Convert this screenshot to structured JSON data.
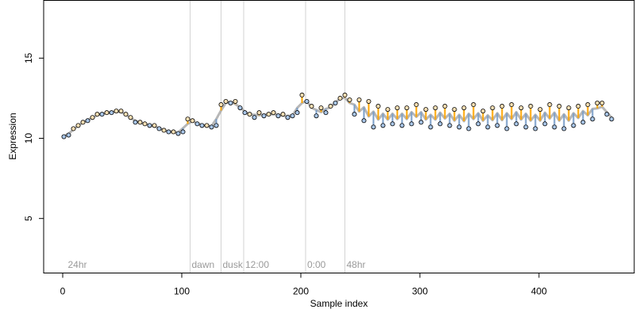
{
  "chart_data": {
    "type": "scatter",
    "title": "",
    "xlabel": "Sample index",
    "ylabel": "Expression",
    "xlim": [
      -16,
      480
    ],
    "ylim": [
      1.6,
      18.6
    ],
    "x_ticks": [
      0,
      100,
      200,
      300,
      400
    ],
    "y_ticks": [
      5,
      10,
      15
    ],
    "grid": false,
    "legend": "none",
    "markers": [
      {
        "label": "24hr",
        "x": 3,
        "line": false
      },
      {
        "label": "dawn",
        "x": 107,
        "line": true
      },
      {
        "label": "dusk",
        "x": 133,
        "line": true
      },
      {
        "label": "12:00",
        "x": 152,
        "line": true
      },
      {
        "label": "0:00",
        "x": 204,
        "line": true
      },
      {
        "label": "48hr",
        "x": 237,
        "line": true
      }
    ],
    "colors": {
      "point_fill_high": "#f5deb3",
      "point_fill_low": "#a9c6e8",
      "point_edge": "#000000",
      "fit_line": "#aaaaaa",
      "residual_up": "#ffa500",
      "residual_down": "#7a9ec8",
      "marker_line": "#d3d3d3"
    },
    "series": [
      {
        "type": "scatter",
        "x": [
          1,
          5,
          9,
          13,
          17,
          21,
          25,
          29,
          33,
          37,
          41,
          45,
          49,
          53,
          57,
          61,
          65,
          69,
          73,
          77,
          81,
          85,
          89,
          93,
          97,
          101,
          105,
          109,
          113,
          117,
          121,
          125,
          129,
          133,
          137,
          141,
          145,
          149,
          153,
          157,
          161,
          165,
          169,
          173,
          177,
          181,
          185,
          189,
          193,
          197,
          201,
          205,
          209,
          213,
          217,
          221,
          225,
          229,
          233,
          237,
          241,
          245,
          249,
          253,
          257,
          261,
          265,
          269,
          273,
          277,
          281,
          285,
          289,
          293,
          297,
          301,
          305,
          309,
          313,
          317,
          321,
          325,
          329,
          333,
          337,
          341,
          345,
          349,
          353,
          357,
          361,
          365,
          369,
          373,
          377,
          381,
          385,
          389,
          393,
          397,
          401,
          405,
          409,
          413,
          417,
          421,
          425,
          429,
          433,
          437,
          441,
          445,
          449,
          453,
          457,
          461
        ],
        "y": [
          10.1,
          10.2,
          10.6,
          10.8,
          11.0,
          11.1,
          11.3,
          11.5,
          11.5,
          11.6,
          11.6,
          11.7,
          11.7,
          11.5,
          11.3,
          11.0,
          11.0,
          10.9,
          10.8,
          10.8,
          10.6,
          10.5,
          10.4,
          10.4,
          10.3,
          10.4,
          11.2,
          11.1,
          10.9,
          10.8,
          10.8,
          10.7,
          10.8,
          12.1,
          12.3,
          12.2,
          12.3,
          11.9,
          11.6,
          11.5,
          11.3,
          11.6,
          11.4,
          11.5,
          11.6,
          11.4,
          11.5,
          11.3,
          11.4,
          11.6,
          12.7,
          12.3,
          12.0,
          11.4,
          11.9,
          11.6,
          12.0,
          12.2,
          12.5,
          12.7,
          12.4,
          11.5,
          12.4,
          11.1,
          12.3,
          10.7,
          12.0,
          10.8,
          11.8,
          10.9,
          11.9,
          10.8,
          11.9,
          10.9,
          12.1,
          11.0,
          11.8,
          10.7,
          11.9,
          10.9,
          12.0,
          10.8,
          11.8,
          10.7,
          11.9,
          10.6,
          12.1,
          10.9,
          11.7,
          10.7,
          11.9,
          10.8,
          12.0,
          10.6,
          12.1,
          10.9,
          11.9,
          10.7,
          12.0,
          10.6,
          11.8,
          10.9,
          12.1,
          10.7,
          12.0,
          10.6,
          11.9,
          10.8,
          12.0,
          11.0,
          12.1,
          11.2,
          12.2,
          12.2,
          11.5,
          11.2
        ]
      }
    ]
  }
}
